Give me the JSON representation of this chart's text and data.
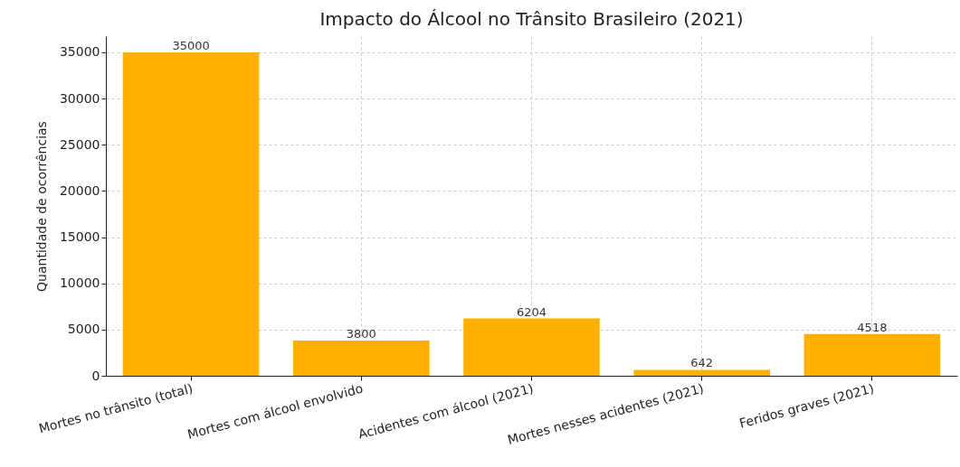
{
  "chart_data": {
    "type": "bar",
    "title": "Impacto do Álcool no Trânsito Brasileiro (2021)",
    "ylabel": "Quantidade de ocorrências",
    "categories": [
      "Mortes no trânsito (total)",
      "Mortes com álcool envolvido",
      "Acidentes com álcool (2021)",
      "Mortes nesses acidentes (2021)",
      "Feridos graves (2021)"
    ],
    "values": [
      35000,
      3800,
      6204,
      642,
      4518
    ],
    "color": "#ffb000",
    "ylim": [
      0,
      36750
    ],
    "yticks": [
      0,
      5000,
      10000,
      15000,
      20000,
      25000,
      30000,
      35000
    ],
    "grid": true,
    "data_labels": true
  }
}
